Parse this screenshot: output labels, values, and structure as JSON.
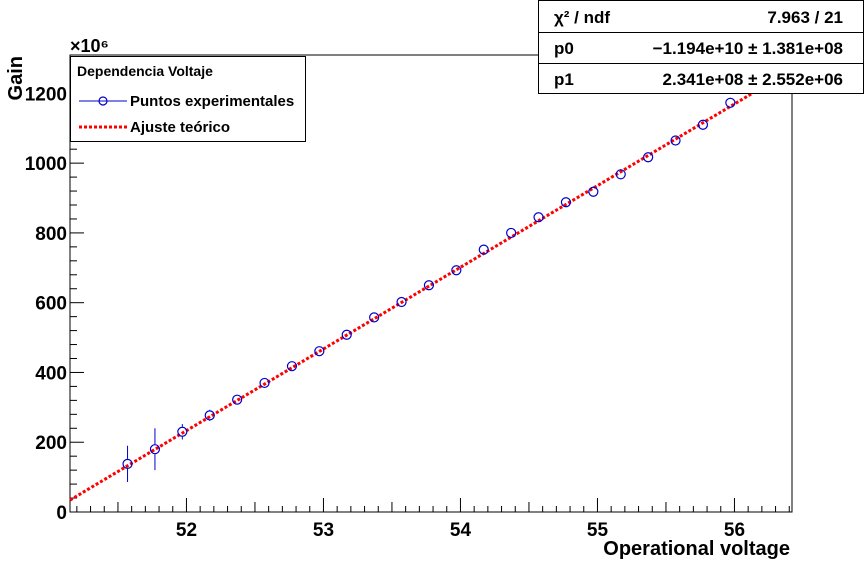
{
  "chart_data": {
    "type": "scatter",
    "xlabel": "Operational voltage",
    "ylabel": "Gain",
    "y_multiplier": "×10⁶",
    "xlim": [
      51.15,
      56.42
    ],
    "ylim": [
      0,
      1310
    ],
    "xticks": [
      52,
      53,
      54,
      55,
      56
    ],
    "yticks": [
      0,
      200,
      400,
      600,
      800,
      1000,
      1200
    ],
    "x_minor_step": 0.1,
    "y_minor_step": 40,
    "series": [
      {
        "name": "Puntos experimentales",
        "color": "#0000cc",
        "marker": "open-circle",
        "x": [
          51.57,
          51.77,
          51.97,
          52.17,
          52.37,
          52.57,
          52.77,
          52.97,
          53.17,
          53.37,
          53.57,
          53.77,
          53.97,
          54.17,
          54.37,
          54.57,
          54.77,
          54.97,
          55.17,
          55.37,
          55.57,
          55.77,
          55.97
        ],
        "y": [
          138,
          180,
          230,
          277,
          322,
          370,
          418,
          461,
          508,
          558,
          602,
          650,
          693,
          752,
          800,
          845,
          888,
          918,
          968,
          1017,
          1065,
          1110,
          1173
        ],
        "yerr": [
          52,
          60,
          22,
          16,
          14,
          13,
          8,
          8,
          13,
          8,
          9,
          8,
          8,
          8,
          8,
          8,
          9,
          15,
          15,
          8,
          12,
          15,
          15
        ]
      },
      {
        "name": "Ajuste teórico",
        "color": "#ff0000",
        "style": "dotted-line",
        "fit": {
          "intercept": -11940,
          "slope": 234.1
        }
      }
    ],
    "legend": {
      "title": "Dependencia Voltaje",
      "position": "top-left",
      "entries": [
        "Puntos experimentales",
        "Ajuste teórico"
      ]
    },
    "stats": [
      {
        "key": "χ² / ndf",
        "value": "7.963 / 21"
      },
      {
        "key": "p0",
        "value": "−1.194e+10 ± 1.381e+08"
      },
      {
        "key": "p1",
        "value": "2.341e+08 ± 2.552e+06"
      }
    ]
  }
}
